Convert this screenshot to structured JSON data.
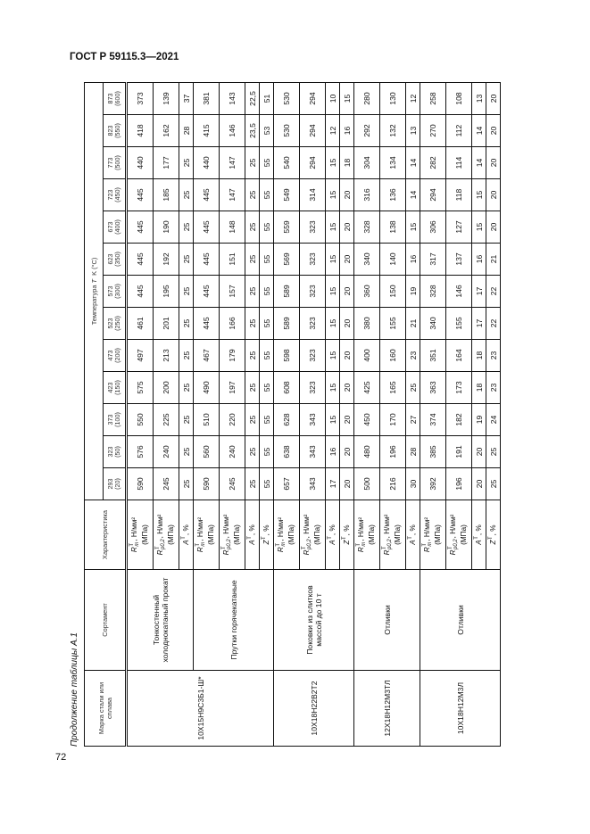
{
  "header": {
    "doc_title": "ГОСТ Р 59115.3—2021",
    "page_number": "72"
  },
  "caption": "Продолжение таблицы А.1",
  "table": {
    "col_grade": "Марка стали или сплава",
    "col_product": "Сортамент",
    "col_char": "Характеристика",
    "temp_title_pre": "Температура ",
    "temp_title_sym": "T",
    "temp_title_post": "  K (°C)",
    "temps": [
      {
        "k": "293",
        "c": "(20)"
      },
      {
        "k": "323",
        "c": "(50)"
      },
      {
        "k": "373",
        "c": "(100)"
      },
      {
        "k": "423",
        "c": "(150)"
      },
      {
        "k": "473",
        "c": "(200)"
      },
      {
        "k": "523",
        "c": "(250)"
      },
      {
        "k": "573",
        "c": "(300)"
      },
      {
        "k": "623",
        "c": "(350)"
      },
      {
        "k": "673",
        "c": "(400)"
      },
      {
        "k": "723",
        "c": "(450)"
      },
      {
        "k": "773",
        "c": "(500)"
      },
      {
        "k": "823",
        "c": "(550)"
      },
      {
        "k": "873",
        "c": "(600)"
      }
    ],
    "chars": {
      "Rm": {
        "sym": "R",
        "sup": "T",
        "sub": "m",
        "unit": ", Н/мм²",
        "unit2": "(МПа)"
      },
      "Rp": {
        "sym": "R",
        "sup": "T",
        "sub": "p0,2",
        "unit": ", Н/мм²",
        "unit2": "(МПа)"
      },
      "A": {
        "sym": "A",
        "sup": "T",
        "sub": "",
        "unit": ", %",
        "unit2": ""
      },
      "Z": {
        "sym": "Z",
        "sup": "T",
        "sub": "",
        "unit": ", %",
        "unit2": ""
      }
    },
    "steels": [
      {
        "grade": "10Х15Н9С3Б1-Ш*",
        "products": [
          {
            "name": "Тонкостенный холоднокатаный прокат",
            "rows": [
              {
                "char": "Rm",
                "values": [
                  "590",
                  "576",
                  "550",
                  "575",
                  "497",
                  "461",
                  "445",
                  "445",
                  "445",
                  "445",
                  "440",
                  "418",
                  "373"
                ]
              },
              {
                "char": "Rp",
                "values": [
                  "245",
                  "240",
                  "225",
                  "200",
                  "213",
                  "201",
                  "195",
                  "192",
                  "190",
                  "185",
                  "177",
                  "162",
                  "139"
                ]
              },
              {
                "char": "A",
                "values": [
                  "25",
                  "25",
                  "25",
                  "25",
                  "25",
                  "25",
                  "25",
                  "25",
                  "25",
                  "25",
                  "25",
                  "28",
                  "37"
                ]
              }
            ]
          },
          {
            "name": "Прутки горячекатаные",
            "rows": [
              {
                "char": "Rm",
                "values": [
                  "590",
                  "560",
                  "510",
                  "490",
                  "467",
                  "445",
                  "445",
                  "445",
                  "445",
                  "445",
                  "440",
                  "415",
                  "381"
                ]
              },
              {
                "char": "Rp",
                "values": [
                  "245",
                  "240",
                  "220",
                  "197",
                  "179",
                  "166",
                  "157",
                  "151",
                  "148",
                  "147",
                  "147",
                  "146",
                  "143"
                ]
              },
              {
                "char": "A",
                "values": [
                  "25",
                  "25",
                  "25",
                  "25",
                  "25",
                  "25",
                  "25",
                  "25",
                  "25",
                  "25",
                  "25",
                  "23,5",
                  "22,5"
                ]
              },
              {
                "char": "Z",
                "values": [
                  "55",
                  "55",
                  "55",
                  "55",
                  "55",
                  "55",
                  "55",
                  "55",
                  "55",
                  "55",
                  "55",
                  "53",
                  "51"
                ]
              }
            ]
          }
        ]
      },
      {
        "grade": "10Х18Н22В2Т2",
        "products": [
          {
            "name": "Поковки из слитков массой до 10 т",
            "rows": [
              {
                "char": "Rm",
                "values": [
                  "657",
                  "638",
                  "628",
                  "608",
                  "598",
                  "589",
                  "589",
                  "569",
                  "559",
                  "549",
                  "540",
                  "530",
                  "530"
                ]
              },
              {
                "char": "Rp",
                "values": [
                  "343",
                  "343",
                  "343",
                  "323",
                  "323",
                  "323",
                  "323",
                  "323",
                  "323",
                  "314",
                  "294",
                  "294",
                  "294"
                ]
              },
              {
                "char": "A",
                "values": [
                  "17",
                  "16",
                  "15",
                  "15",
                  "15",
                  "15",
                  "15",
                  "15",
                  "15",
                  "15",
                  "15",
                  "12",
                  "10"
                ]
              },
              {
                "char": "Z",
                "values": [
                  "20",
                  "20",
                  "20",
                  "20",
                  "20",
                  "20",
                  "20",
                  "20",
                  "20",
                  "20",
                  "18",
                  "16",
                  "15"
                ]
              }
            ]
          }
        ]
      },
      {
        "grade": "12Х18Н12М3ТЛ",
        "products": [
          {
            "name": "Отливки",
            "rows": [
              {
                "char": "Rm",
                "values": [
                  "500",
                  "480",
                  "450",
                  "425",
                  "400",
                  "380",
                  "360",
                  "340",
                  "328",
                  "316",
                  "304",
                  "292",
                  "280"
                ]
              },
              {
                "char": "Rp",
                "values": [
                  "216",
                  "196",
                  "170",
                  "165",
                  "160",
                  "155",
                  "150",
                  "140",
                  "138",
                  "136",
                  "134",
                  "132",
                  "130"
                ]
              },
              {
                "char": "A",
                "values": [
                  "30",
                  "28",
                  "27",
                  "25",
                  "23",
                  "21",
                  "19",
                  "16",
                  "15",
                  "14",
                  "14",
                  "13",
                  "12"
                ]
              }
            ]
          }
        ]
      },
      {
        "grade": "10Х18Н12М3Л",
        "products": [
          {
            "name": "Отливки",
            "rows": [
              {
                "char": "Rm",
                "values": [
                  "392",
                  "385",
                  "374",
                  "363",
                  "351",
                  "340",
                  "328",
                  "317",
                  "306",
                  "294",
                  "282",
                  "270",
                  "258"
                ]
              },
              {
                "char": "Rp",
                "values": [
                  "196",
                  "191",
                  "182",
                  "173",
                  "164",
                  "155",
                  "146",
                  "137",
                  "127",
                  "118",
                  "114",
                  "112",
                  "108"
                ]
              },
              {
                "char": "A",
                "values": [
                  "20",
                  "20",
                  "19",
                  "18",
                  "18",
                  "17",
                  "17",
                  "16",
                  "15",
                  "15",
                  "14",
                  "14",
                  "13"
                ]
              },
              {
                "char": "Z",
                "values": [
                  "25",
                  "25",
                  "24",
                  "23",
                  "23",
                  "22",
                  "22",
                  "21",
                  "20",
                  "20",
                  "20",
                  "20",
                  "20"
                ]
              }
            ]
          }
        ]
      }
    ]
  }
}
